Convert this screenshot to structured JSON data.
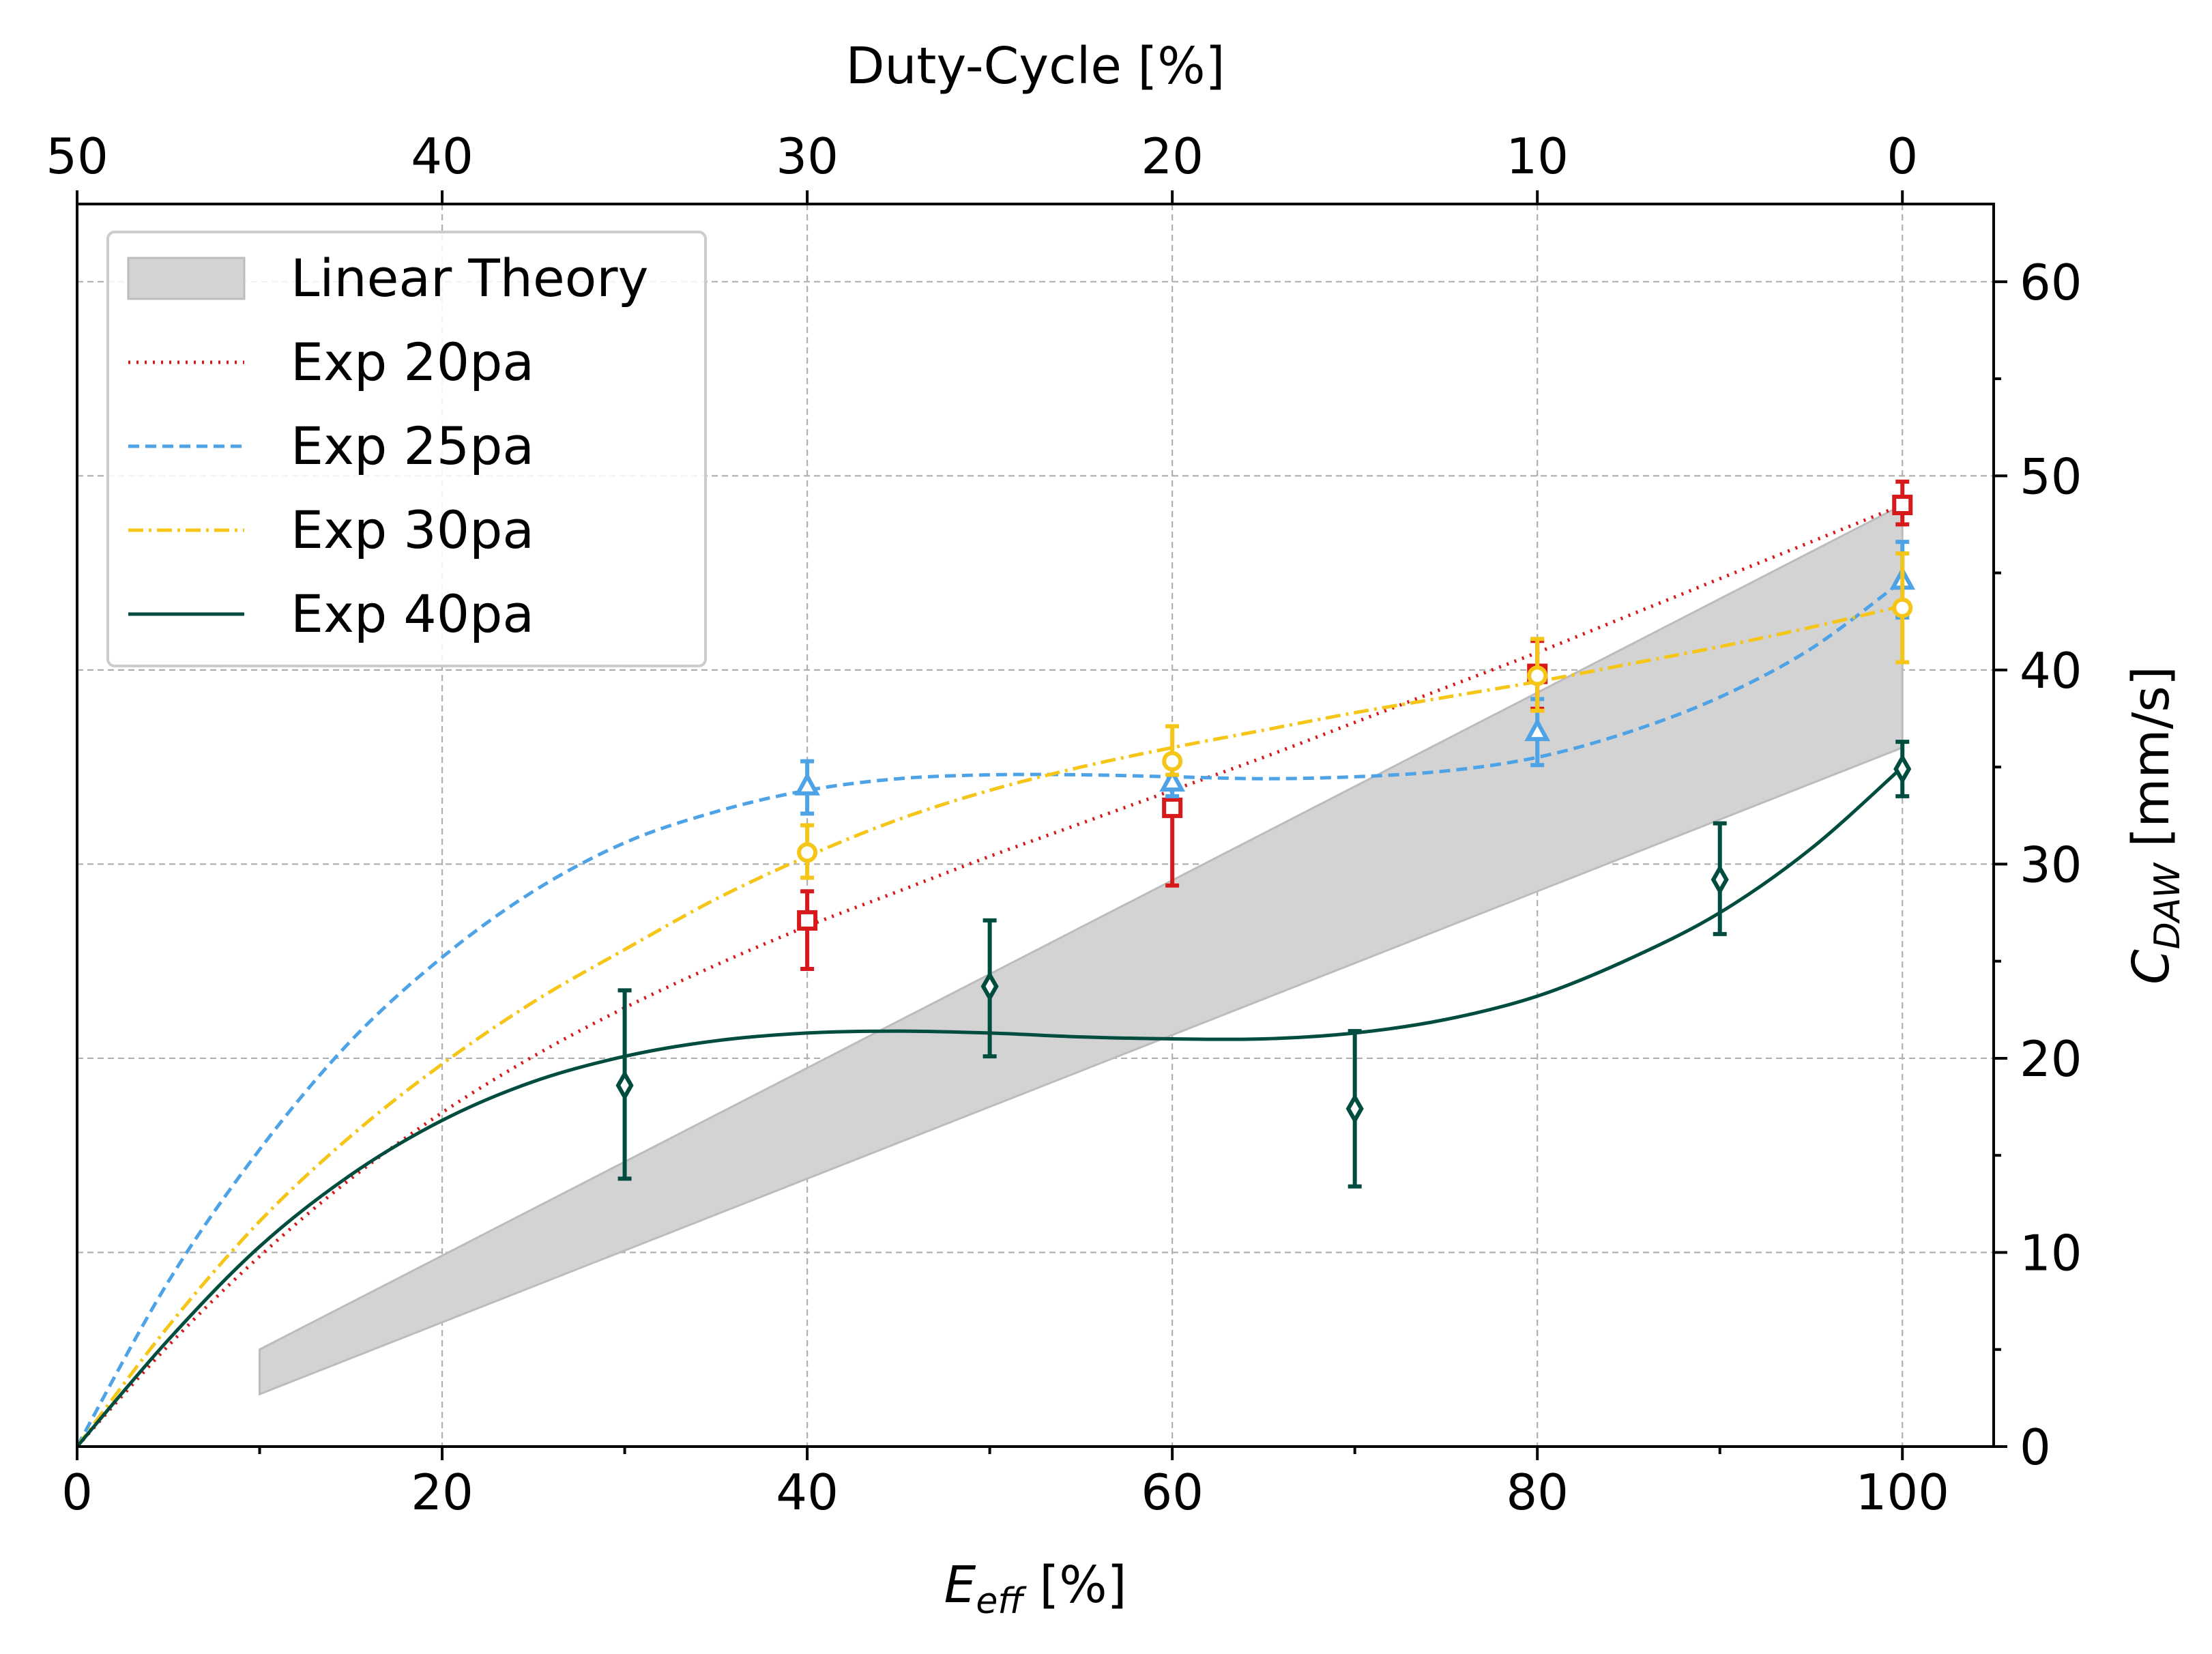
{
  "chart_data": {
    "type": "line",
    "xlabel_main": "E",
    "xlabel_sub": "eff",
    "xlabel_unit": " [%]",
    "ylabel_main": "C",
    "ylabel_sub": "DAW",
    "ylabel_unit": " [mm/s]",
    "top_xlabel": "Duty-Cycle [%]",
    "xlim": [
      0,
      105
    ],
    "ylim": [
      0,
      64
    ],
    "x_ticks": [
      0,
      20,
      40,
      60,
      80,
      100
    ],
    "x_tick_labels": [
      "0",
      "20",
      "40",
      "60",
      "80",
      "100"
    ],
    "x_minor_ticks": [
      10,
      30,
      50,
      70,
      90
    ],
    "top_ticks_at_x": [
      0,
      20,
      40,
      60,
      80,
      100
    ],
    "top_tick_labels": [
      "50",
      "40",
      "30",
      "20",
      "10",
      "0"
    ],
    "y_ticks": [
      0,
      10,
      20,
      30,
      40,
      50,
      60
    ],
    "y_tick_labels": [
      "0",
      "10",
      "20",
      "30",
      "40",
      "50",
      "60"
    ],
    "y_minor_ticks": [
      5,
      15,
      25,
      35,
      45,
      55
    ],
    "y_axis_side": "right",
    "grid": true,
    "legend_position": "top-left",
    "band": {
      "name": "Linear Theory",
      "color": "#d3d3d3",
      "x": [
        10,
        100
      ],
      "lower": [
        2.7,
        36
      ],
      "upper": [
        5,
        48.5
      ]
    },
    "series": [
      {
        "name": "Exp 20pa",
        "color": "#d7191c",
        "line_style": "dotted",
        "marker": "square",
        "points": [
          {
            "x": 40,
            "y": 27.1,
            "yerr_low": 24.6,
            "yerr_high": 28.6
          },
          {
            "x": 60,
            "y": 32.9,
            "yerr_low": 28.9,
            "yerr_high": 33.4
          },
          {
            "x": 80,
            "y": 39.8,
            "yerr_low": 38.0,
            "yerr_high": 41.5
          },
          {
            "x": 100,
            "y": 48.5,
            "yerr_low": 47.5,
            "yerr_high": 49.7
          }
        ],
        "fit_x": [
          0,
          5,
          10,
          15,
          20,
          25,
          30,
          35,
          40,
          45,
          50,
          55,
          60,
          65,
          70,
          75,
          80,
          85,
          90,
          95,
          100
        ],
        "fit_y": [
          0,
          5.2,
          9.8,
          13.8,
          17.2,
          20.1,
          22.6,
          24.8,
          26.8,
          28.6,
          30.4,
          32.1,
          33.8,
          35.5,
          37.3,
          39.1,
          40.9,
          42.8,
          44.7,
          46.6,
          48.5
        ]
      },
      {
        "name": "Exp 25pa",
        "color": "#4da3e6",
        "line_style": "dashed",
        "marker": "triangle",
        "points": [
          {
            "x": 40,
            "y": 34.0,
            "yerr_low": 32.6,
            "yerr_high": 35.3
          },
          {
            "x": 60,
            "y": 34.2,
            "yerr_low": 33.5,
            "yerr_high": 35.0
          },
          {
            "x": 80,
            "y": 36.8,
            "yerr_low": 35.1,
            "yerr_high": 38.5
          },
          {
            "x": 100,
            "y": 44.6,
            "yerr_low": 42.7,
            "yerr_high": 46.6
          }
        ],
        "fit_x": [
          0,
          5,
          10,
          15,
          20,
          25,
          30,
          35,
          40,
          45,
          50,
          55,
          60,
          65,
          70,
          75,
          80,
          85,
          90,
          95,
          100
        ],
        "fit_y": [
          0,
          8.5,
          15.3,
          20.9,
          25.2,
          28.6,
          31.1,
          32.7,
          33.8,
          34.4,
          34.6,
          34.6,
          34.5,
          34.4,
          34.5,
          34.8,
          35.5,
          36.8,
          38.6,
          41.1,
          44.6
        ]
      },
      {
        "name": "Exp 30pa",
        "color": "#f5c518",
        "line_style": "dashdot",
        "marker": "circle",
        "points": [
          {
            "x": 40,
            "y": 30.6,
            "yerr_low": 29.3,
            "yerr_high": 32.0
          },
          {
            "x": 60,
            "y": 35.3,
            "yerr_low": 34.6,
            "yerr_high": 37.1
          },
          {
            "x": 80,
            "y": 39.7,
            "yerr_low": 37.9,
            "yerr_high": 41.6
          },
          {
            "x": 100,
            "y": 43.2,
            "yerr_low": 40.4,
            "yerr_high": 46.0
          }
        ],
        "fit_x": [
          0,
          5,
          10,
          15,
          20,
          25,
          30,
          35,
          40,
          45,
          50,
          55,
          60,
          65,
          70,
          75,
          80,
          85,
          90,
          95,
          100
        ],
        "fit_y": [
          0,
          6.2,
          11.6,
          16.0,
          19.7,
          22.9,
          25.6,
          28.2,
          30.4,
          32.3,
          33.8,
          35.0,
          36.0,
          36.9,
          37.8,
          38.6,
          39.4,
          40.3,
          41.2,
          42.2,
          43.3
        ]
      },
      {
        "name": "Exp 40pa",
        "color": "#004d40",
        "line_style": "solid",
        "marker": "diamond",
        "points": [
          {
            "x": 30,
            "y": 18.6,
            "yerr_low": 13.8,
            "yerr_high": 23.5
          },
          {
            "x": 50,
            "y": 23.7,
            "yerr_low": 20.1,
            "yerr_high": 27.1
          },
          {
            "x": 70,
            "y": 17.4,
            "yerr_low": 13.4,
            "yerr_high": 21.4
          },
          {
            "x": 90,
            "y": 29.2,
            "yerr_low": 26.4,
            "yerr_high": 32.1
          },
          {
            "x": 100,
            "y": 34.9,
            "yerr_low": 33.5,
            "yerr_high": 36.3
          }
        ],
        "fit_x": [
          0,
          5,
          10,
          15,
          20,
          25,
          30,
          35,
          40,
          45,
          50,
          55,
          60,
          65,
          70,
          75,
          80,
          85,
          90,
          95,
          100
        ],
        "fit_y": [
          0,
          5.5,
          10.3,
          14.0,
          16.8,
          18.8,
          20.1,
          20.9,
          21.3,
          21.4,
          21.3,
          21.1,
          21.0,
          21.0,
          21.3,
          22.0,
          23.2,
          25.1,
          27.5,
          30.8,
          35.0
        ]
      }
    ]
  }
}
